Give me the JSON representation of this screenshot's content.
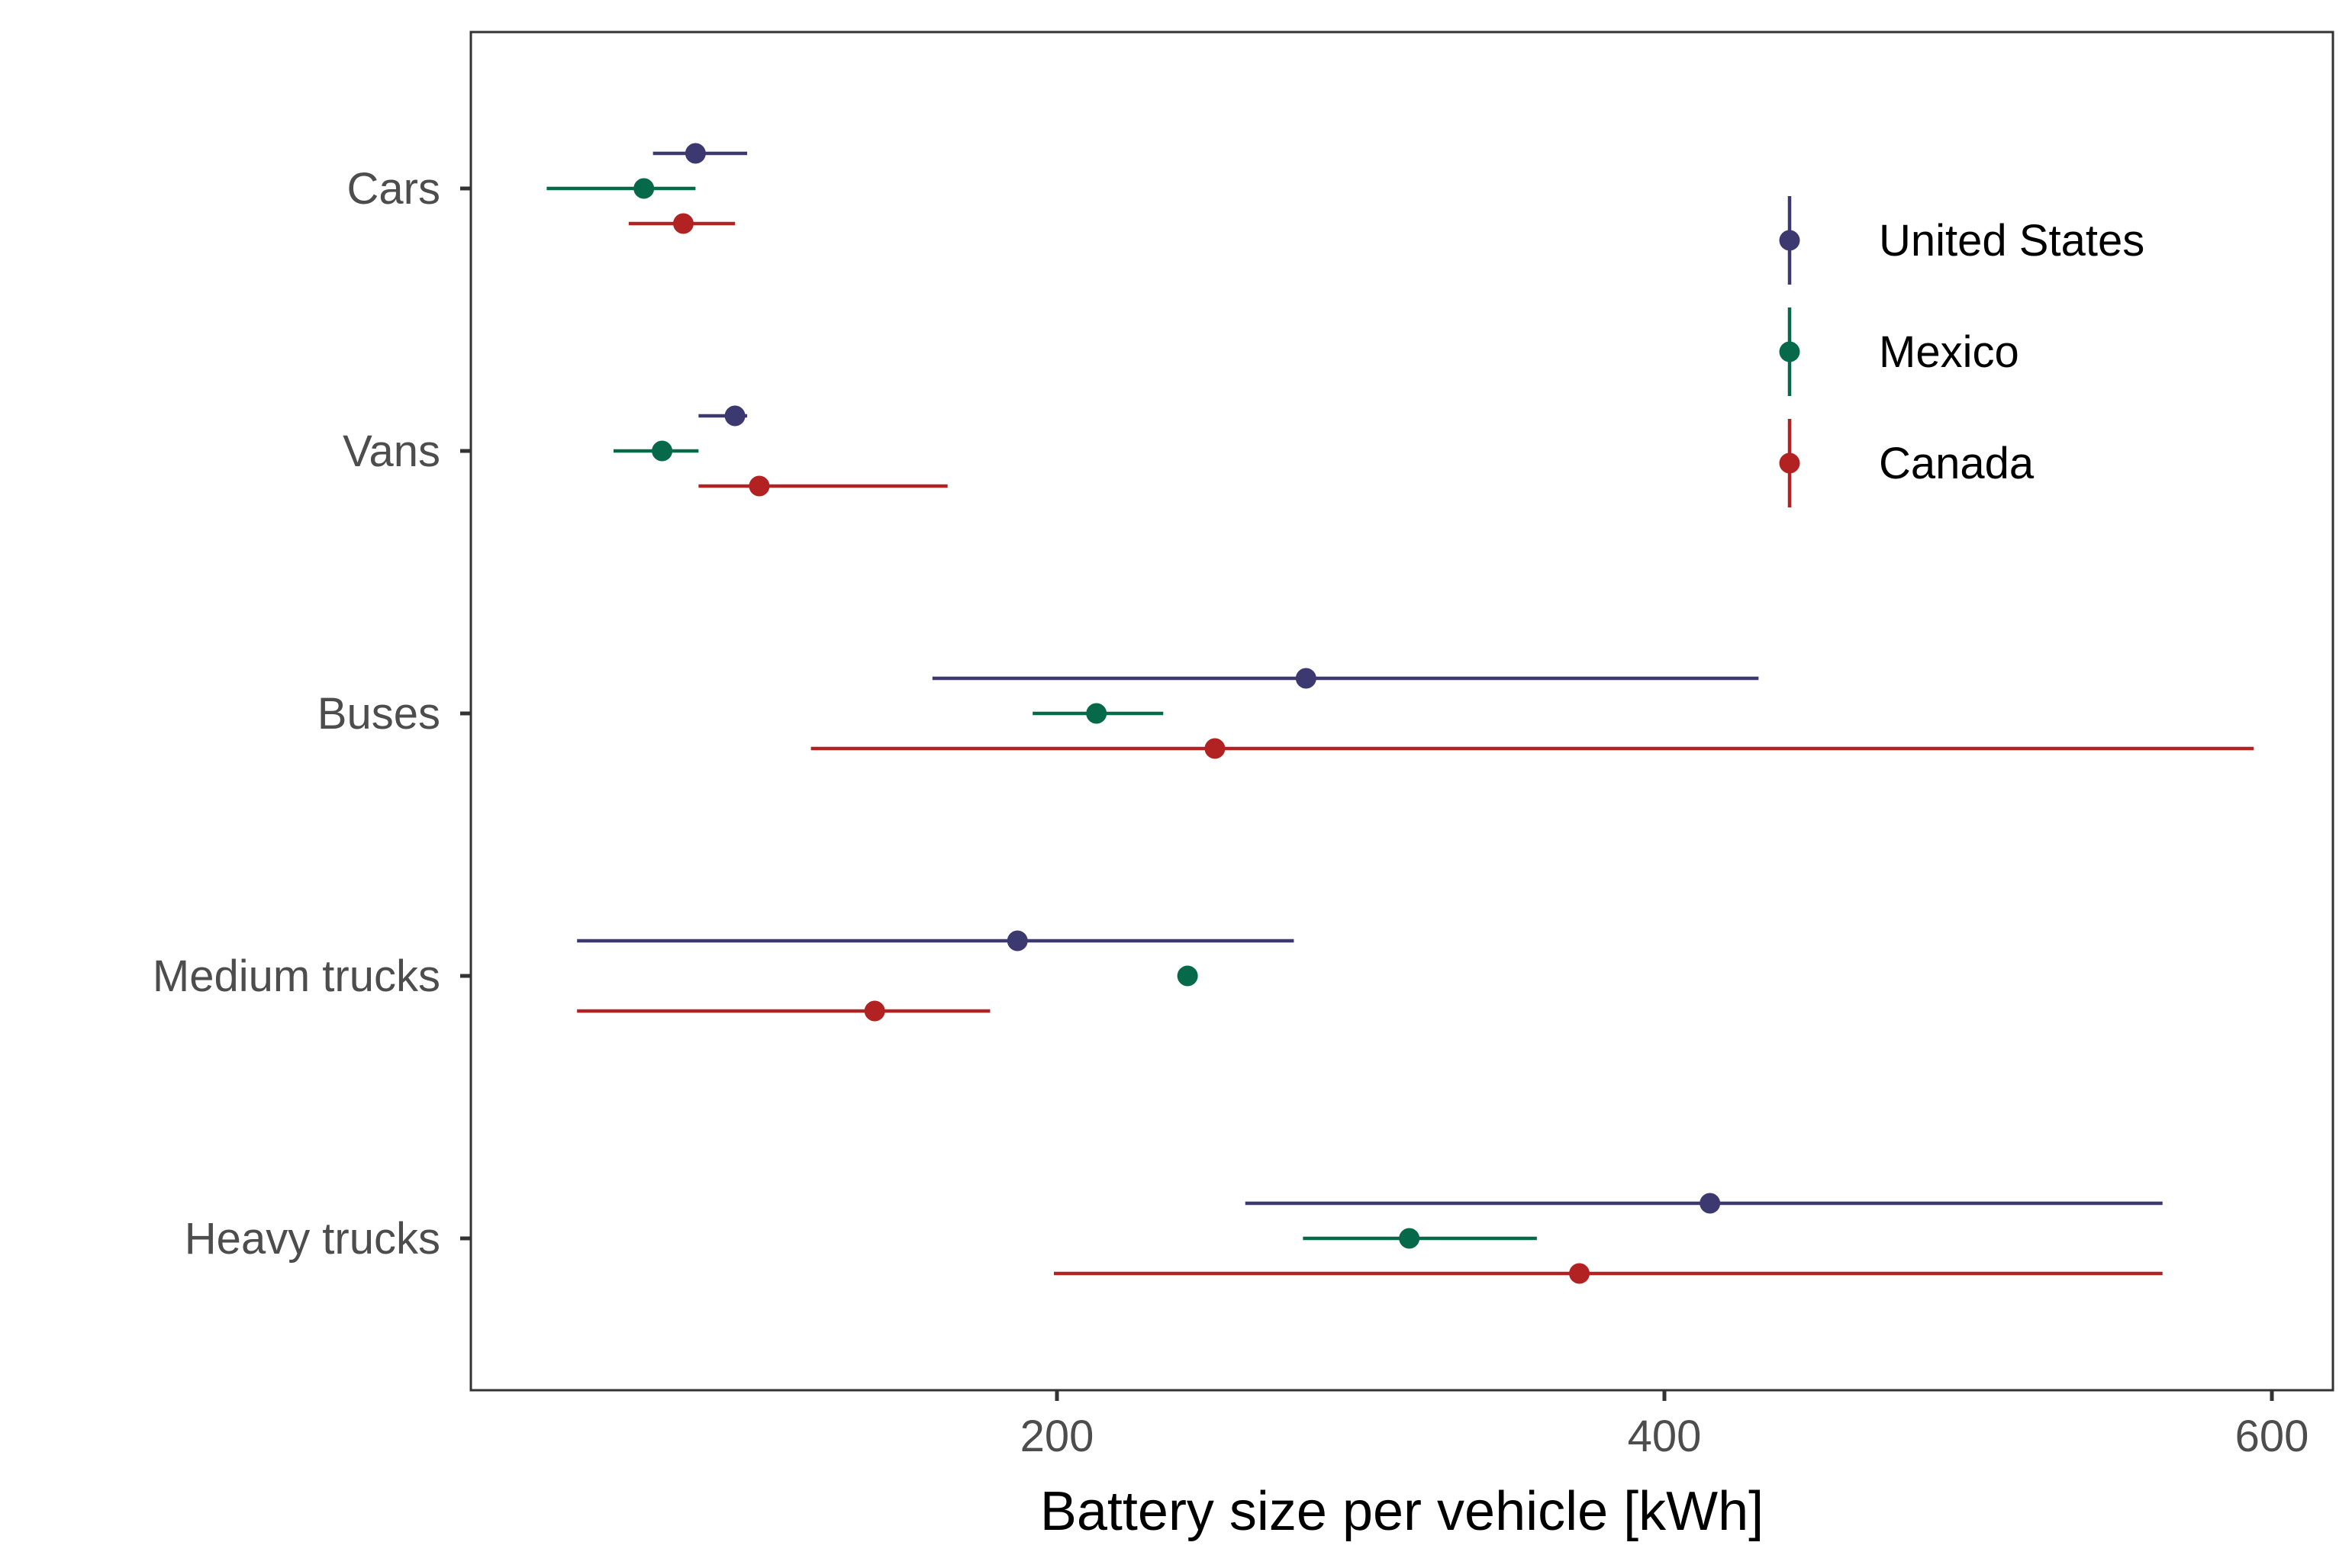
{
  "chart_data": {
    "type": "scatter",
    "subtype": "point-range (dot with horizontal error bars)",
    "xlabel": "Battery size per vehicle [kWh]",
    "ylabel": "",
    "xlim": [
      5,
      620
    ],
    "x_ticks": [
      200,
      400,
      600
    ],
    "x_tick_labels": [
      "200",
      "400",
      "600"
    ],
    "categories": [
      "Cars",
      "Vans",
      "Buses",
      "Medium trucks",
      "Heavy trucks"
    ],
    "grid": false,
    "legend_position": "top-right",
    "series": [
      {
        "name": "United States",
        "color": "#3b3970",
        "points": [
          {
            "category": "Cars",
            "x": 81,
            "low": 67,
            "high": 98
          },
          {
            "category": "Vans",
            "x": 94,
            "low": 82,
            "high": 98
          },
          {
            "category": "Buses",
            "x": 282,
            "low": 159,
            "high": 431
          },
          {
            "category": "Medium trucks",
            "x": 187,
            "low": 42,
            "high": 278
          },
          {
            "category": "Heavy trucks",
            "x": 415,
            "low": 262,
            "high": 564
          }
        ]
      },
      {
        "name": "Mexico",
        "color": "#066a4a",
        "points": [
          {
            "category": "Cars",
            "x": 64,
            "low": 32,
            "high": 81
          },
          {
            "category": "Vans",
            "x": 70,
            "low": 54,
            "high": 82
          },
          {
            "category": "Buses",
            "x": 213,
            "low": 192,
            "high": 235
          },
          {
            "category": "Medium trucks",
            "x": 243,
            "low": 243,
            "high": 243
          },
          {
            "category": "Heavy trucks",
            "x": 316,
            "low": 281,
            "high": 358
          }
        ]
      },
      {
        "name": "Canada",
        "color": "#b22222",
        "points": [
          {
            "category": "Cars",
            "x": 77,
            "low": 59,
            "high": 94
          },
          {
            "category": "Vans",
            "x": 102,
            "low": 82,
            "high": 164
          },
          {
            "category": "Buses",
            "x": 252,
            "low": 119,
            "high": 594
          },
          {
            "category": "Medium trucks",
            "x": 140,
            "low": 42,
            "high": 178
          },
          {
            "category": "Heavy trucks",
            "x": 372,
            "low": 199,
            "high": 564
          }
        ]
      }
    ]
  }
}
